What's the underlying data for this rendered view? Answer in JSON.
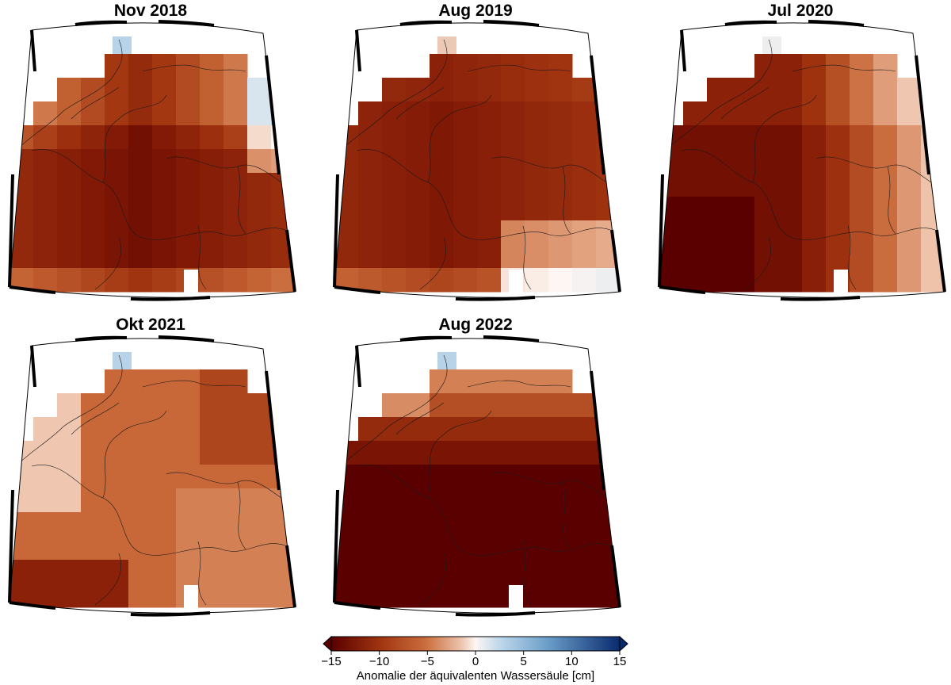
{
  "maps": [
    {
      "title": "Nov 2018"
    },
    {
      "title": "Aug 2019"
    },
    {
      "title": "Jul 2020"
    },
    {
      "title": "Okt 2021"
    },
    {
      "title": "Aug 2022"
    }
  ],
  "colorbar": {
    "ticks": [
      "−15",
      "−10",
      "−5",
      "0",
      "5",
      "10",
      "15"
    ],
    "tick_values": [
      -15,
      -10,
      -5,
      0,
      5,
      10,
      15
    ],
    "title": "Anomalie der äquivalenten Wassersäule [cm]",
    "min": -15,
    "max": 15,
    "colors": [
      "#5a0000",
      "#a03410",
      "#cc6f3f",
      "#ebc3ac",
      "#fdf6f2",
      "#c1d9ec",
      "#6b9ec9",
      "#0a2a6e"
    ]
  }
}
